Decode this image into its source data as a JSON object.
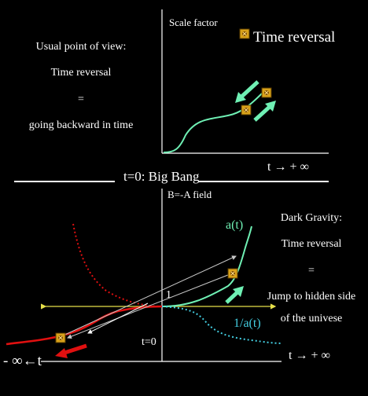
{
  "left_text": {
    "title": "Usual point of view:",
    "line1": "Time reversal",
    "eq": "=",
    "line2": "going backward in time"
  },
  "upper_graph": {
    "y_axis_label": "Scale factor",
    "legend_label": "Time reversal",
    "x_axis_label": "t → + ∞"
  },
  "divider_label": "t=0: Big Bang",
  "lower_graph": {
    "y_axis_label": "B=-A field",
    "a_label": "a(t)",
    "inv_label": "1/a(t)",
    "one_label": "1",
    "t0_label": "t=0",
    "x_plus_label": "t → + ∞",
    "x_minus_label": "- ∞←t"
  },
  "right_text": {
    "title": "Dark Gravity:",
    "line1": "Time reversal",
    "eq": "=",
    "line2": "Jump to hidden side",
    "line3": "of  the univese"
  },
  "colors": {
    "background": "#000000",
    "a_curve": "#6ff0b4",
    "inverse_curve": "#43cde0",
    "red_curve": "#e01010",
    "baseline": "#e6e04a",
    "marker": "#d9a21a"
  },
  "icons": [
    "time-reversal-marker-icon"
  ]
}
